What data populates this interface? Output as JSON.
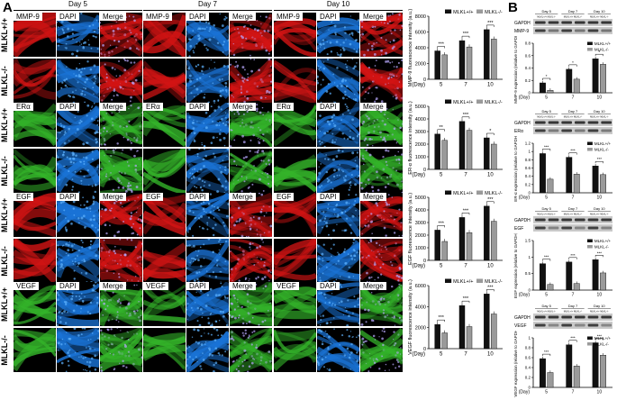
{
  "panel_a_label": "A",
  "panel_b_label": "B",
  "days": [
    "Day 5",
    "Day 7",
    "Day 10"
  ],
  "wb_days": [
    "Day 5",
    "Day 7",
    "Day 10"
  ],
  "genotype_wt": "MLKL+/+",
  "genotype_ko": "MLKL-/-",
  "channel_dapi": "DAPI",
  "channel_merge": "Merge",
  "colors": {
    "red": "#d21414",
    "green": "#34b42a",
    "blue": "#1a73d6",
    "bar_wt": "#111111",
    "bar_ko": "#9a9a9a"
  },
  "blocks": [
    {
      "marker": "MMP-9",
      "color": "red"
    },
    {
      "marker": "ERα",
      "color": "green"
    },
    {
      "marker": "EGF",
      "color": "red"
    },
    {
      "marker": "VEGF",
      "color": "green"
    }
  ],
  "legend": {
    "wt": "MLKL+/+",
    "ko": "MLKL-/-"
  },
  "wb_gapdh": "GAPDH",
  "wb_genotype_small": "MLKL+/+ MLKL-/-",
  "chart_data": [
    {
      "type": "bar",
      "ylabel": "MMP-9 fluorescence intensity (a.u.)",
      "xlabel": "(Day)",
      "categories": [
        "5",
        "7",
        "10"
      ],
      "ylim": [
        0,
        8000
      ],
      "yticks": [
        0,
        2000,
        4000,
        6000,
        8000
      ],
      "series": [
        {
          "name": "MLKL+/+",
          "values": [
            3600,
            4900,
            6300
          ]
        },
        {
          "name": "MLKL-/-",
          "values": [
            3100,
            4100,
            5100
          ]
        }
      ],
      "sig": [
        "***",
        "***",
        "***"
      ]
    },
    {
      "type": "bar",
      "ylabel": "ER-α fluorescence intensity (a.u.)",
      "xlabel": "(Day)",
      "categories": [
        "5",
        "7",
        "10"
      ],
      "ylim": [
        0,
        5000
      ],
      "yticks": [
        0,
        1000,
        2000,
        3000,
        4000,
        5000
      ],
      "series": [
        {
          "name": "MLKL+/+",
          "values": [
            2800,
            3800,
            2500
          ]
        },
        {
          "name": "MLKL-/-",
          "values": [
            2300,
            3100,
            2000
          ]
        }
      ],
      "sig": [
        "**",
        "***",
        "*"
      ]
    },
    {
      "type": "bar",
      "ylabel": "EGF fluorescence intensity (a.u.)",
      "xlabel": "(Day)",
      "categories": [
        "5",
        "7",
        "10"
      ],
      "ylim": [
        0,
        5000
      ],
      "yticks": [
        0,
        1000,
        2000,
        3000,
        4000,
        5000
      ],
      "series": [
        {
          "name": "MLKL+/+",
          "values": [
            2400,
            3400,
            4300
          ]
        },
        {
          "name": "MLKL-/-",
          "values": [
            1500,
            2200,
            3100
          ]
        }
      ],
      "sig": [
        "***",
        "***",
        "***"
      ]
    },
    {
      "type": "bar",
      "ylabel": "VEGF fluorescence intensity (a.u.)",
      "xlabel": "(Day)",
      "categories": [
        "5",
        "7",
        "10"
      ],
      "ylim": [
        0,
        6000
      ],
      "yticks": [
        0,
        2000,
        4000,
        6000
      ],
      "series": [
        {
          "name": "MLKL+/+",
          "values": [
            2300,
            4100,
            5200
          ]
        },
        {
          "name": "MLKL-/-",
          "values": [
            1500,
            2100,
            3300
          ]
        }
      ],
      "sig": [
        "***",
        "***",
        "***"
      ]
    },
    {
      "type": "bar",
      "ylabel": "MMP-9 expression (relative to GAPDH)",
      "xlabel": "(Day)",
      "categories": [
        "5",
        "7",
        "10"
      ],
      "ylim": [
        0,
        0.8
      ],
      "yticks": [
        0,
        0.2,
        0.4,
        0.6,
        0.8
      ],
      "series": [
        {
          "name": "MLKL+/+",
          "values": [
            0.16,
            0.38,
            0.55
          ]
        },
        {
          "name": "MLKL-/-",
          "values": [
            0.04,
            0.22,
            0.46
          ]
        }
      ],
      "sig": [
        "*",
        "*",
        "*"
      ]
    },
    {
      "type": "bar",
      "ylabel": "ER-α expression (relative to GAPDH)",
      "xlabel": "(Day)",
      "categories": [
        "5",
        "7",
        "10"
      ],
      "ylim": [
        0,
        1.2
      ],
      "yticks": [
        0,
        0.2,
        0.4,
        0.6,
        0.8,
        1.0,
        1.2
      ],
      "series": [
        {
          "name": "MLKL+/+",
          "values": [
            0.95,
            0.86,
            0.65
          ]
        },
        {
          "name": "MLKL-/-",
          "values": [
            0.33,
            0.45,
            0.44
          ]
        }
      ],
      "sig": [
        "***",
        "***",
        "***"
      ]
    },
    {
      "type": "bar",
      "ylabel": "EGF expression (relative to GAPDH)",
      "xlabel": "(Day)",
      "categories": [
        "5",
        "7",
        "10"
      ],
      "ylim": [
        0,
        1.5
      ],
      "yticks": [
        0,
        0.5,
        1.0,
        1.5
      ],
      "series": [
        {
          "name": "MLKL+/+",
          "values": [
            0.8,
            0.85,
            0.92
          ]
        },
        {
          "name": "MLKL-/-",
          "values": [
            0.17,
            0.2,
            0.52
          ]
        }
      ],
      "sig": [
        "***",
        "***",
        "***"
      ]
    },
    {
      "type": "bar",
      "ylabel": "VEGF expression (relative to GAPDH)",
      "xlabel": "(Day)",
      "categories": [
        "5",
        "7",
        "10"
      ],
      "ylim": [
        0,
        1.0
      ],
      "yticks": [
        0,
        0.2,
        0.4,
        0.6,
        0.8,
        1.0
      ],
      "series": [
        {
          "name": "MLKL+/+",
          "values": [
            0.58,
            0.86,
            0.9
          ]
        },
        {
          "name": "MLKL-/-",
          "values": [
            0.3,
            0.43,
            0.65
          ]
        }
      ],
      "sig": [
        "***",
        "***",
        "***"
      ]
    }
  ]
}
